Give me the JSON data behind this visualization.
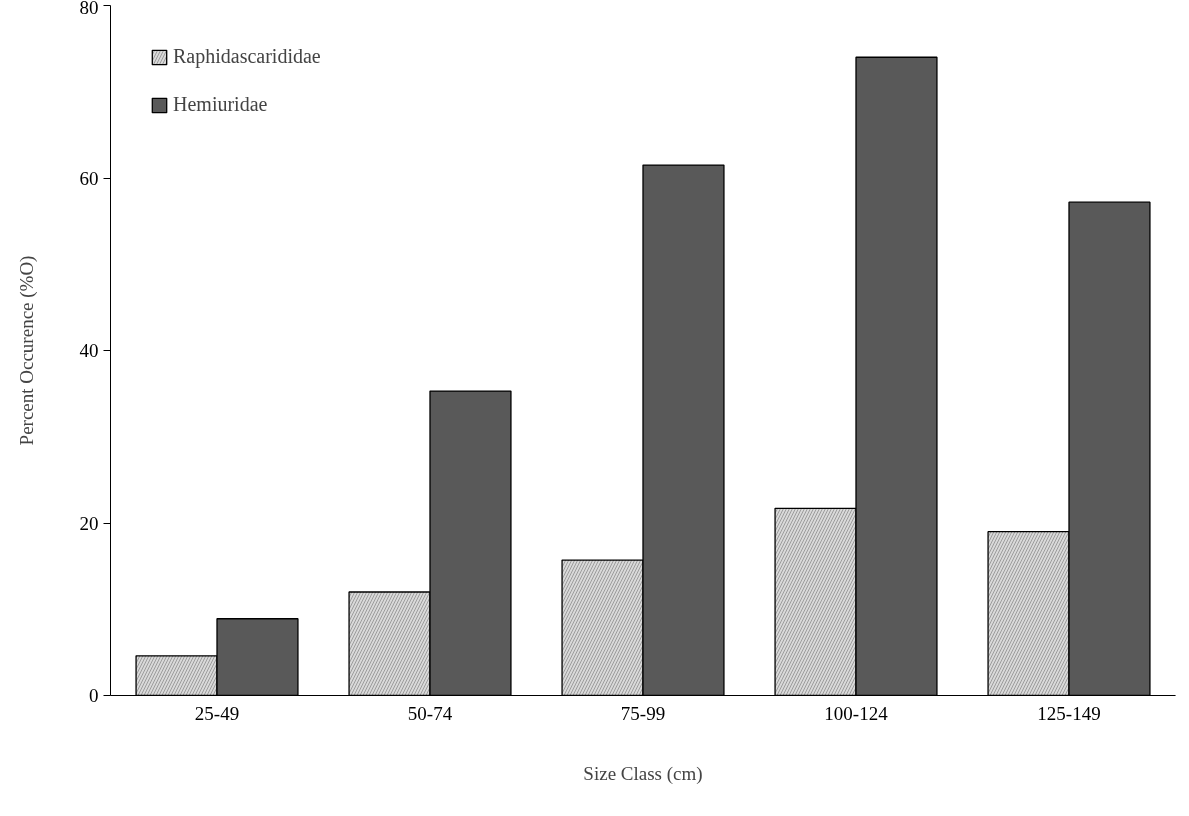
{
  "chart_data": {
    "type": "bar",
    "xlabel": "Size Class (cm)",
    "ylabel": "Percent Occurence (%O)",
    "categories": [
      "25-49",
      "50-74",
      "75-99",
      "100-124",
      "125-149"
    ],
    "series": [
      {
        "name": "Raphidascarididae",
        "color": "#d9d9d9",
        "values": [
          4.6,
          12.0,
          15.7,
          21.7,
          19.0
        ]
      },
      {
        "name": "Hemiuridae",
        "color": "#595959",
        "values": [
          8.9,
          35.3,
          61.5,
          74.0,
          57.2
        ]
      }
    ],
    "ylim": [
      0,
      80
    ],
    "yticks": [
      0,
      20,
      40,
      60,
      80
    ],
    "grid": false,
    "legend": "top left"
  }
}
